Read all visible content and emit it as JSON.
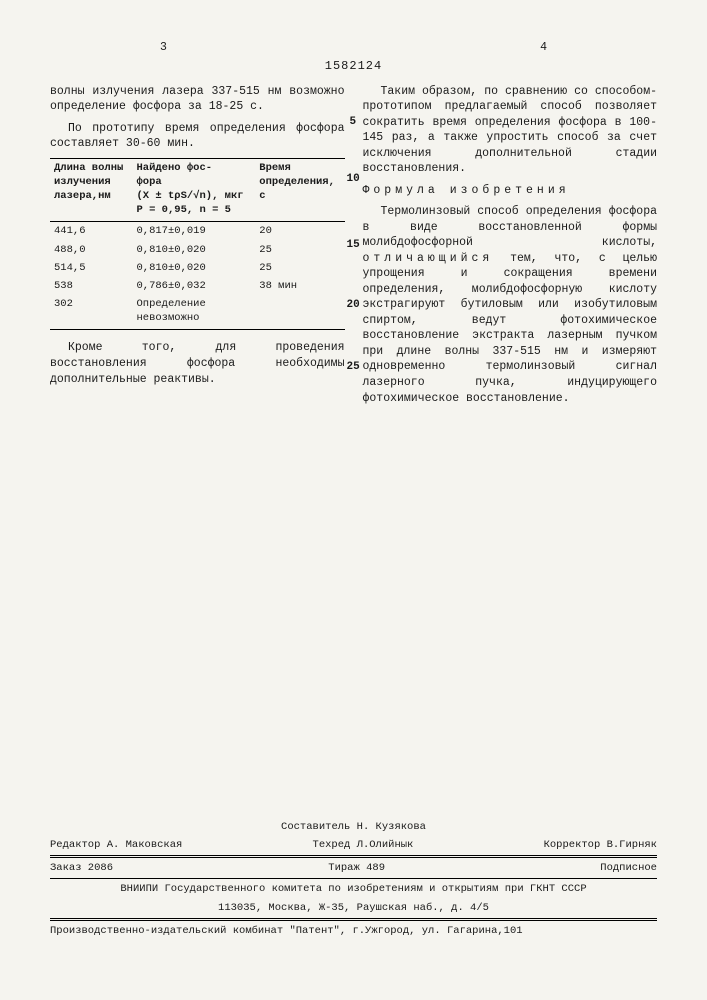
{
  "page_left_num": "3",
  "page_right_num": "4",
  "doc_number": "1582124",
  "line_markers": [
    "5",
    "10",
    "15",
    "20",
    "25"
  ],
  "left_col": {
    "para1": "волны излучения лазера 337-515 нм возможно определение фосфора за 18-25 с.",
    "para2": "По прототипу время определения фосфора составляет 30-60 мин.",
    "para3": "Кроме того, для проведения восстановления фосфора необходимы дополнительные реактивы."
  },
  "table": {
    "col1_header_l1": "Длина волны",
    "col1_header_l2": "излучения",
    "col1_header_l3": "лазера,нм",
    "col2_header_l1": "Найдено фос-",
    "col2_header_l2": "фора",
    "col2_formula": "(X ± tρS/√n), мкг",
    "col2_params": "P = 0,95, n = 5",
    "col3_header_l1": "Время",
    "col3_header_l2": "определения,",
    "col3_header_l3": "с",
    "rows": [
      {
        "wl": "441,6",
        "found": "0,817±0,019",
        "time": "20"
      },
      {
        "wl": "488,0",
        "found": "0,810±0,020",
        "time": "25"
      },
      {
        "wl": "514,5",
        "found": "0,810±0,020",
        "time": "25"
      },
      {
        "wl": "538",
        "found": "0,786±0,032",
        "time": "38 мин"
      },
      {
        "wl": "302",
        "found": "Определение",
        "time": ""
      }
    ],
    "impossible": "невозможно"
  },
  "right_col": {
    "para1": "Таким образом, по сравнению со способом-прототипом предлагаемый способ позволяет сократить время определения фосфора в 100-145 раз, а также упростить способ за счет исключения дополнительной стадии восстановления.",
    "formula_title": "Формула изобретения",
    "para2_start": "Термолинзовый способ определения фосфора в виде восстановленной формы молибдофосфорной кислоты, ",
    "otlich": "отличающийся",
    "para2_end": " тем, что, с целью упрощения и сокращения времени определения, молибдофосфорную кислоту экстрагируют бутиловым или изобутиловым спиртом, ведут фотохимическое восстановление экстракта лазерным пучком при длине волны 337-515 нм и измеряют одновременно термолинзовый сигнал лазерного пучка, индуцирующего фотохимическое восстановление."
  },
  "footer": {
    "compiler": "Составитель  Н. Кузякова",
    "editor": "Редактор А. Маковская",
    "techred": "Техред Л.Олийнык",
    "corrector": "Корректор В.Гирняк",
    "order": "Заказ 2086",
    "tirazh": "Тираж 489",
    "subscribed": "Подписное",
    "org1": "ВНИИПИ Государственного комитета по изобретениям и открытиям при ГКНТ СССР",
    "org2": "113035, Москва, Ж-35, Раушская наб., д. 4/5",
    "org3": "Производственно-издательский комбинат \"Патент\", г.Ужгород, ул. Гагарина,101"
  }
}
